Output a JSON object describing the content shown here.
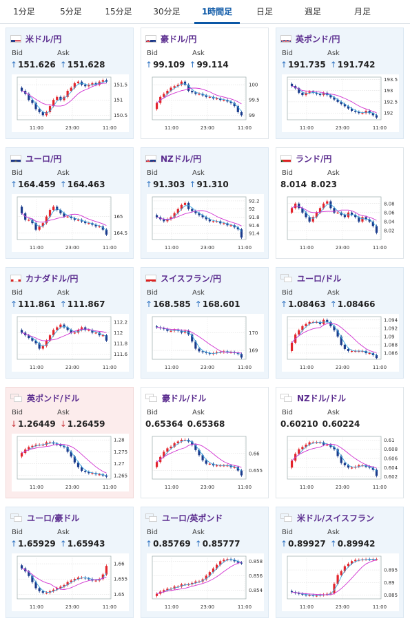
{
  "tabs": [
    {
      "label": "1分足",
      "active": false
    },
    {
      "label": "5分足",
      "active": false
    },
    {
      "label": "15分足",
      "active": false
    },
    {
      "label": "30分足",
      "active": false
    },
    {
      "label": "1時間足",
      "active": true
    },
    {
      "label": "日足",
      "active": false
    },
    {
      "label": "週足",
      "active": false
    },
    {
      "label": "月足",
      "active": false
    }
  ],
  "colors": {
    "up_arrow": "#2f73c2",
    "down_arrow": "#c8353b",
    "bull": "#e3242b",
    "bear": "#1a3b8c",
    "ma_fast": "#3aa8e0",
    "ma_slow": "#d030d0",
    "tab_active": "#0b57a6",
    "pair_text": "#5b2d8f"
  },
  "cards": [
    {
      "pair": "米ドル/円",
      "flag": "us-flag-icon",
      "bid_label": "Bid",
      "ask_label": "Ask",
      "bid": "151.626",
      "ask": "151.628",
      "bid_dir": "up",
      "ask_dir": "up",
      "bg": "blue",
      "chart_data": {
        "type": "candlestick",
        "yticks": [
          "151.5",
          "151",
          "150.5"
        ],
        "ylim": [
          150.35,
          151.75
        ],
        "xticks": [
          "11:00",
          "23:00",
          "11:00"
        ],
        "close": [
          151.3,
          151.2,
          151.0,
          150.9,
          150.7,
          150.6,
          150.5,
          150.6,
          150.8,
          151.0,
          151.1,
          151.0,
          151.1,
          151.3,
          151.4,
          151.55,
          151.6,
          151.5,
          151.45,
          151.5,
          151.55,
          151.5,
          151.6,
          151.65,
          151.6
        ]
      }
    },
    {
      "pair": "豪ドル/円",
      "flag": "au-flag-icon",
      "bid_label": "Bid",
      "ask_label": "Ask",
      "bid": "99.109",
      "ask": "99.114",
      "bid_dir": "up",
      "ask_dir": "up",
      "bg": "plain",
      "chart_data": {
        "type": "candlestick",
        "yticks": [
          "100",
          "99.5",
          "99"
        ],
        "ylim": [
          98.85,
          100.25
        ],
        "xticks": [
          "11:00",
          "23:00",
          "11:00"
        ],
        "close": [
          99.4,
          99.6,
          99.7,
          99.8,
          99.9,
          99.95,
          100.0,
          100.1,
          100.0,
          99.8,
          99.75,
          99.7,
          99.7,
          99.65,
          99.6,
          99.6,
          99.55,
          99.55,
          99.5,
          99.5,
          99.45,
          99.4,
          99.3,
          99.1,
          99.0
        ]
      }
    },
    {
      "pair": "英ポンド/円",
      "flag": "gb-flag-icon",
      "bid_label": "Bid",
      "ask_label": "Ask",
      "bid": "191.735",
      "ask": "191.742",
      "bid_dir": "up",
      "ask_dir": "up",
      "bg": "blue",
      "chart_data": {
        "type": "candlestick",
        "yticks": [
          "193.5",
          "193",
          "192.5",
          "192"
        ],
        "ylim": [
          191.7,
          193.6
        ],
        "xticks": [
          "11:00",
          "23:00",
          "11:00"
        ],
        "close": [
          193.2,
          193.1,
          192.9,
          192.8,
          192.9,
          192.95,
          192.9,
          192.85,
          192.8,
          192.9,
          192.8,
          192.7,
          192.6,
          192.5,
          192.4,
          192.3,
          192.2,
          192.1,
          192.05,
          192.0,
          192.0,
          192.1,
          192.0,
          191.9,
          191.8
        ]
      }
    },
    {
      "pair": "ユーロ/円",
      "flag": "eu-flag-icon",
      "bid_label": "Bid",
      "ask_label": "Ask",
      "bid": "164.459",
      "ask": "164.463",
      "bid_dir": "up",
      "ask_dir": "up",
      "bg": "blue",
      "chart_data": {
        "type": "candlestick",
        "yticks": [
          "165",
          "164.5"
        ],
        "ylim": [
          164.3,
          165.6
        ],
        "xticks": [
          "11:00",
          "23:00",
          "11:00"
        ],
        "close": [
          165.1,
          164.9,
          164.9,
          164.8,
          164.6,
          164.7,
          164.8,
          165.0,
          165.2,
          165.3,
          165.2,
          165.1,
          165.0,
          165.0,
          164.95,
          164.9,
          164.9,
          164.85,
          164.8,
          164.8,
          164.75,
          164.7,
          164.7,
          164.6,
          164.45
        ]
      }
    },
    {
      "pair": "NZドル/円",
      "flag": "nz-flag-icon",
      "bid_label": "Bid",
      "ask_label": "Ask",
      "bid": "91.303",
      "ask": "91.310",
      "bid_dir": "up",
      "ask_dir": "up",
      "bg": "blue",
      "chart_data": {
        "type": "candlestick",
        "yticks": [
          "92.2",
          "92",
          "91.8",
          "91.6",
          "91.4"
        ],
        "ylim": [
          91.25,
          92.3
        ],
        "xticks": [
          "11:00",
          "23:00",
          "11:00"
        ],
        "close": [
          91.8,
          91.75,
          91.7,
          91.75,
          91.8,
          91.9,
          92.0,
          92.1,
          92.15,
          92.0,
          91.95,
          91.9,
          91.85,
          91.8,
          91.75,
          91.7,
          91.7,
          91.7,
          91.65,
          91.65,
          91.6,
          91.6,
          91.55,
          91.5,
          91.3
        ]
      }
    },
    {
      "pair": "ランド/円",
      "flag": "za-flag-icon",
      "bid_label": "Bid",
      "ask_label": "Ask",
      "bid": "8.014",
      "ask": "8.023",
      "bid_dir": "none",
      "ask_dir": "none",
      "bg": "plain",
      "chart_data": {
        "type": "candlestick",
        "yticks": [
          "8.08",
          "8.06",
          "8.04",
          "8.02"
        ],
        "ylim": [
          8.0,
          8.095
        ],
        "xticks": [
          "11:00",
          "23:00",
          "11:00"
        ],
        "close": [
          8.07,
          8.08,
          8.07,
          8.06,
          8.05,
          8.04,
          8.05,
          8.06,
          8.07,
          8.08,
          8.085,
          8.07,
          8.06,
          8.06,
          8.055,
          8.05,
          8.06,
          8.055,
          8.05,
          8.04,
          8.05,
          8.045,
          8.04,
          8.03,
          8.015
        ]
      }
    },
    {
      "pair": "カナダドル/円",
      "flag": "ca-flag-icon",
      "bid_label": "Bid",
      "ask_label": "Ask",
      "bid": "111.861",
      "ask": "111.867",
      "bid_dir": "up",
      "ask_dir": "up",
      "bg": "blue",
      "chart_data": {
        "type": "candlestick",
        "yticks": [
          "112.2",
          "112",
          "111.8",
          "111.6"
        ],
        "ylim": [
          111.5,
          112.3
        ],
        "xticks": [
          "11:00",
          "23:00",
          "11:00"
        ],
        "close": [
          112.0,
          111.95,
          111.9,
          111.85,
          111.8,
          111.7,
          111.75,
          111.85,
          111.95,
          112.05,
          112.1,
          112.15,
          112.1,
          112.05,
          112.0,
          112.0,
          112.05,
          112.1,
          112.05,
          112.05,
          112.0,
          112.0,
          111.95,
          111.95,
          111.85
        ]
      }
    },
    {
      "pair": "スイスフラン/円",
      "flag": "ch-flag-icon",
      "bid_label": "Bid",
      "ask_label": "Ask",
      "bid": "168.585",
      "ask": "168.601",
      "bid_dir": "up",
      "ask_dir": "up",
      "bg": "blue",
      "chart_data": {
        "type": "candlestick",
        "yticks": [
          "170",
          "169"
        ],
        "ylim": [
          168.5,
          170.9
        ],
        "xticks": [
          "11:00",
          "23:00",
          "11:00"
        ],
        "close": [
          170.3,
          170.25,
          170.2,
          170.1,
          170.1,
          170.15,
          170.1,
          170.0,
          170.1,
          169.9,
          169.5,
          169.1,
          168.95,
          168.9,
          168.85,
          168.8,
          168.85,
          168.9,
          168.9,
          168.95,
          168.9,
          168.9,
          168.85,
          168.8,
          168.6
        ]
      }
    },
    {
      "pair": "ユーロ/ドル",
      "flag": "eu-us-flag-icon",
      "bid_label": "Bid",
      "ask_label": "Ask",
      "bid": "1.08463",
      "ask": "1.08466",
      "bid_dir": "up",
      "ask_dir": "up",
      "bg": "blue",
      "chart_data": {
        "type": "candlestick",
        "yticks": [
          "1.094",
          "1.092",
          "1.09",
          "1.088",
          "1.086"
        ],
        "ylim": [
          1.0845,
          1.0948
        ],
        "xticks": [
          "11:00",
          "23:00",
          "11:00"
        ],
        "close": [
          1.0885,
          1.0905,
          1.0915,
          1.0925,
          1.093,
          1.0935,
          1.0935,
          1.0935,
          1.093,
          1.094,
          1.0935,
          1.0925,
          1.0915,
          1.09,
          1.088,
          1.087,
          1.0865,
          1.0865,
          1.0865,
          1.0865,
          1.0865,
          1.086,
          1.086,
          1.0855,
          1.0848
        ]
      }
    },
    {
      "pair": "英ポンド/ドル",
      "flag": "gb-us-flag-icon",
      "bid_label": "Bid",
      "ask_label": "Ask",
      "bid": "1.26449",
      "ask": "1.26459",
      "bid_dir": "down",
      "ask_dir": "down",
      "bg": "pink",
      "chart_data": {
        "type": "candlestick",
        "yticks": [
          "1.28",
          "1.275",
          "1.27",
          "1.265"
        ],
        "ylim": [
          1.2635,
          1.2815
        ],
        "xticks": [
          "11:00",
          "23:00",
          "11:00"
        ],
        "close": [
          1.2745,
          1.276,
          1.277,
          1.2775,
          1.278,
          1.278,
          1.278,
          1.279,
          1.279,
          1.2785,
          1.278,
          1.2775,
          1.277,
          1.275,
          1.273,
          1.2705,
          1.2685,
          1.267,
          1.2665,
          1.266,
          1.266,
          1.2655,
          1.2655,
          1.265,
          1.2645
        ]
      }
    },
    {
      "pair": "豪ドル/ドル",
      "flag": "au-us-flag-icon",
      "bid_label": "Bid",
      "ask_label": "Ask",
      "bid": "0.65364",
      "ask": "0.65368",
      "bid_dir": "none",
      "ask_dir": "none",
      "bg": "plain",
      "chart_data": {
        "type": "candlestick",
        "yticks": [
          "0.66",
          "0.655"
        ],
        "ylim": [
          0.6525,
          0.665
        ],
        "xticks": [
          "11:00",
          "23:00",
          "11:00"
        ],
        "close": [
          0.6575,
          0.659,
          0.6605,
          0.6615,
          0.662,
          0.663,
          0.6635,
          0.664,
          0.664,
          0.6635,
          0.6625,
          0.661,
          0.6595,
          0.658,
          0.657,
          0.657,
          0.6565,
          0.6565,
          0.6565,
          0.6565,
          0.6565,
          0.656,
          0.656,
          0.655,
          0.6536
        ]
      }
    },
    {
      "pair": "NZドル/ドル",
      "flag": "nz-us-flag-icon",
      "bid_label": "Bid",
      "ask_label": "Ask",
      "bid": "0.60210",
      "ask": "0.60224",
      "bid_dir": "none",
      "ask_dir": "none",
      "bg": "plain",
      "chart_data": {
        "type": "candlestick",
        "yticks": [
          "0.61",
          "0.608",
          "0.606",
          "0.604",
          "0.602"
        ],
        "ylim": [
          0.6015,
          0.6108
        ],
        "xticks": [
          "11:00",
          "23:00",
          "11:00"
        ],
        "close": [
          0.6055,
          0.607,
          0.608,
          0.6085,
          0.609,
          0.6095,
          0.6095,
          0.6095,
          0.6095,
          0.609,
          0.609,
          0.6085,
          0.608,
          0.6065,
          0.605,
          0.6045,
          0.604,
          0.604,
          0.6042,
          0.6045,
          0.6045,
          0.6042,
          0.604,
          0.6035,
          0.6022
        ]
      }
    },
    {
      "pair": "ユーロ/豪ドル",
      "flag": "eu-au-flag-icon",
      "bid_label": "Bid",
      "ask_label": "Ask",
      "bid": "1.65929",
      "ask": "1.65943",
      "bid_dir": "up",
      "ask_dir": "up",
      "bg": "blue",
      "chart_data": {
        "type": "candlestick",
        "yticks": [
          "1.66",
          "1.655",
          "1.65"
        ],
        "ylim": [
          1.6485,
          1.6625
        ],
        "xticks": [
          "11:00",
          "23:00",
          "11:00"
        ],
        "close": [
          1.6585,
          1.6575,
          1.656,
          1.654,
          1.652,
          1.651,
          1.6505,
          1.6505,
          1.651,
          1.6515,
          1.652,
          1.6525,
          1.653,
          1.654,
          1.6545,
          1.655,
          1.6555,
          1.6555,
          1.6552,
          1.655,
          1.6545,
          1.6545,
          1.655,
          1.6565,
          1.6593
        ]
      }
    },
    {
      "pair": "ユーロ/英ポンド",
      "flag": "eu-gb-flag-icon",
      "bid_label": "Bid",
      "ask_label": "Ask",
      "bid": "0.85769",
      "ask": "0.85777",
      "bid_dir": "up",
      "ask_dir": "up",
      "bg": "blue",
      "chart_data": {
        "type": "candlestick",
        "yticks": [
          "0.858",
          "0.856",
          "0.854"
        ],
        "ylim": [
          0.8528,
          0.8587
        ],
        "xticks": [
          "11:00",
          "23:00",
          "11:00"
        ],
        "close": [
          0.8535,
          0.8538,
          0.854,
          0.8542,
          0.8542,
          0.8545,
          0.8545,
          0.8548,
          0.8548,
          0.8548,
          0.855,
          0.8552,
          0.8552,
          0.8555,
          0.856,
          0.8565,
          0.857,
          0.8575,
          0.858,
          0.8582,
          0.8583,
          0.8582,
          0.858,
          0.8578,
          0.8577
        ]
      }
    },
    {
      "pair": "米ドル/スイスフラン",
      "flag": "us-ch-flag-icon",
      "bid_label": "Bid",
      "ask_label": "Ask",
      "bid": "0.89927",
      "ask": "0.89942",
      "bid_dir": "up",
      "ask_dir": "up",
      "bg": "blue",
      "chart_data": {
        "type": "candlestick",
        "yticks": [
          "0.895",
          "0.89",
          "0.885"
        ],
        "ylim": [
          0.8835,
          0.9005
        ],
        "xticks": [
          "11:00",
          "23:00",
          "11:00"
        ],
        "close": [
          0.8862,
          0.8858,
          0.8855,
          0.8852,
          0.885,
          0.885,
          0.8848,
          0.8848,
          0.885,
          0.8852,
          0.8855,
          0.8858,
          0.8895,
          0.893,
          0.8945,
          0.8965,
          0.8975,
          0.8985,
          0.899,
          0.899,
          0.8992,
          0.8993,
          0.8992,
          0.8993,
          0.8993
        ]
      }
    }
  ]
}
